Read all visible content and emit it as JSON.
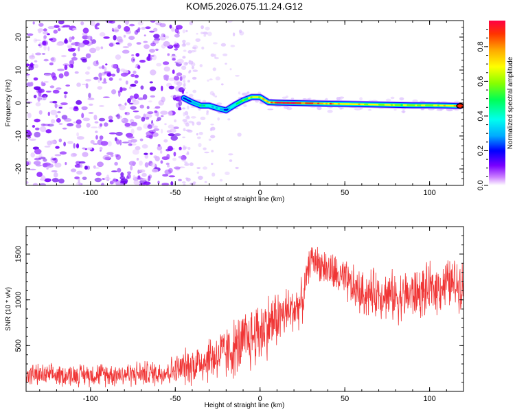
{
  "title": "KOM5.2026.075.11.24.G12",
  "chart_data": [
    {
      "type": "heatmap",
      "name": "spectrogram",
      "xlabel": "Height of straight line (km)",
      "ylabel": "Frequency (Hz)",
      "xlim": [
        -138,
        120
      ],
      "ylim": [
        -25,
        25
      ],
      "xticks": [
        -100,
        -50,
        0,
        50,
        100
      ],
      "yticks": [
        -20,
        -10,
        0,
        10,
        20
      ],
      "colorbar": {
        "label": "Normalized spectral amplitude",
        "range": [
          0,
          0.95
        ],
        "ticks": [
          0.0,
          0.2,
          0.4,
          0.6,
          0.8
        ],
        "tick_labels": [
          "0.0",
          "0.2",
          "0.4",
          "0.6",
          "0.8"
        ],
        "colormap": [
          "#ffffff",
          "#cc80ff",
          "#7a00ff",
          "#0000ff",
          "#00aaff",
          "#00ffee",
          "#00ff55",
          "#88ff00",
          "#ffff00",
          "#ffaa00",
          "#ff3300",
          "#ff0044"
        ]
      },
      "ridge": {
        "x": [
          -45,
          -40,
          -35,
          -30,
          -25,
          -20,
          -15,
          -10,
          -5,
          0,
          5,
          10,
          20,
          30,
          40,
          50,
          60,
          70,
          80,
          90,
          100,
          110,
          118
        ],
        "y": [
          1.5,
          0.2,
          -0.8,
          -0.8,
          -1.6,
          -2.2,
          -0.6,
          0.8,
          1.8,
          1.8,
          0.2,
          0.1,
          0.0,
          -0.1,
          -0.2,
          -0.3,
          -0.4,
          -0.5,
          -0.6,
          -0.7,
          -0.7,
          -0.8,
          -0.9
        ],
        "amplitude": [
          0.25,
          0.35,
          0.45,
          0.45,
          0.4,
          0.35,
          0.55,
          0.6,
          0.7,
          0.75,
          0.8,
          0.95,
          0.95,
          0.85,
          0.8,
          0.75,
          0.7,
          0.7,
          0.65,
          0.65,
          0.7,
          0.75,
          0.95
        ]
      },
      "noise_region_x": [
        -138,
        -45
      ]
    },
    {
      "type": "line",
      "name": "snr",
      "xlabel": "Height of straight line (km)",
      "ylabel": "SNR (10 * v/v)",
      "xlim": [
        -138,
        120
      ],
      "ylim": [
        0,
        1800
      ],
      "xticks": [
        -100,
        -50,
        0,
        50,
        100
      ],
      "yticks": [
        500,
        1000,
        1500
      ],
      "color": "#f03535",
      "envelope": {
        "x": [
          -138,
          -120,
          -100,
          -80,
          -60,
          -50,
          -40,
          -30,
          -20,
          -10,
          0,
          10,
          20,
          25,
          28,
          30,
          35,
          40,
          50,
          60,
          70,
          80,
          90,
          100,
          110,
          120
        ],
        "mean": [
          180,
          175,
          185,
          190,
          200,
          230,
          290,
          360,
          420,
          520,
          660,
          800,
          900,
          980,
          1300,
          1450,
          1400,
          1330,
          1200,
          1060,
          1080,
          1030,
          1060,
          1100,
          1180,
          1170
        ],
        "spread": [
          150,
          140,
          150,
          160,
          170,
          200,
          260,
          320,
          360,
          420,
          460,
          380,
          320,
          280,
          200,
          200,
          220,
          260,
          280,
          300,
          320,
          330,
          340,
          340,
          330,
          330
        ]
      },
      "samples": 1400
    }
  ]
}
